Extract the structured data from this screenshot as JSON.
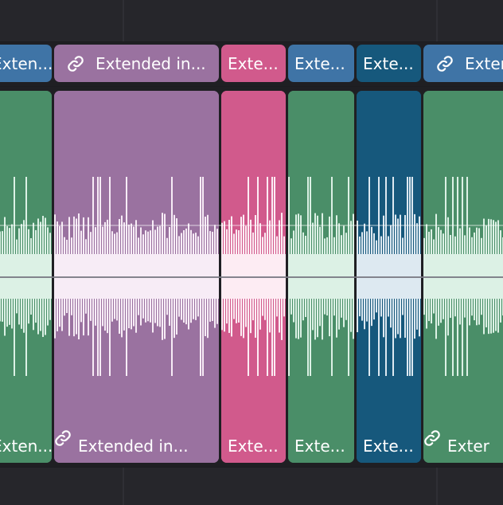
{
  "clips": [
    {
      "id": "c0",
      "title": "Exten...",
      "linked": false,
      "label_color": "#3f74a6",
      "wave_color": "#4a8e68",
      "wave_fill": "#dcf1e5",
      "seed": 11
    },
    {
      "id": "c1",
      "title": "Extended in...",
      "linked": true,
      "label_color": "#9a72a0",
      "wave_color": "#9a72a0",
      "wave_fill": "#f7ecf6",
      "seed": 23
    },
    {
      "id": "c2",
      "title": "Exte...",
      "linked": false,
      "label_color": "#d15a8c",
      "wave_color": "#d15a8c",
      "wave_fill": "#fdecf3",
      "seed": 37
    },
    {
      "id": "c3",
      "title": "Exte...",
      "linked": false,
      "label_color": "#3f74a6",
      "wave_color": "#4a8e68",
      "wave_fill": "#dcf1e5",
      "seed": 51
    },
    {
      "id": "c4",
      "title": "Exte...",
      "linked": false,
      "label_color": "#16587c",
      "wave_color": "#16587c",
      "wave_fill": "#dde9f1",
      "seed": 67
    },
    {
      "id": "c5",
      "title": "Exter",
      "linked": true,
      "label_color": "#3f74a6",
      "wave_color": "#4a8e68",
      "wave_fill": "#dcf1e5",
      "seed": 83
    }
  ],
  "icons": {
    "link": "link-icon"
  }
}
